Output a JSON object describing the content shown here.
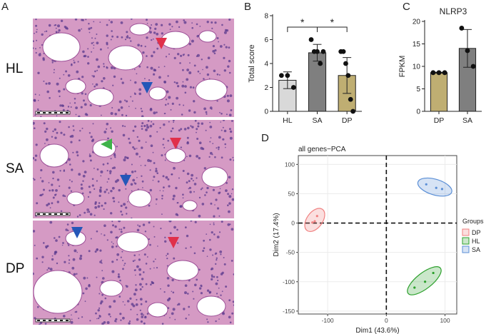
{
  "panels": {
    "a": "A",
    "b": "B",
    "c": "C",
    "d": "D"
  },
  "histology": {
    "rows": [
      {
        "label": "HL"
      },
      {
        "label": "SA"
      },
      {
        "label": "DP"
      }
    ]
  },
  "colors": {
    "tissue": "#d59ac4",
    "tissue_dark": "#9c4f97",
    "nuclei": "#5a3a8e",
    "arrow_red": "#e0304a",
    "arrow_blue": "#2457b8",
    "arrow_green": "#3fb24a",
    "HL": "#d9d9d9",
    "SA": "#7f7f7f",
    "DP": "#bfae72",
    "pca_DP": "#f08080",
    "pca_HL": "#2ca02c",
    "pca_SA": "#5b8fd6"
  },
  "chart_data": [
    {
      "id": "B",
      "type": "bar",
      "categories": [
        "HL",
        "SA",
        "DP"
      ],
      "values": [
        2.6,
        4.9,
        3.0
      ],
      "errors": [
        0.7,
        0.7,
        1.5
      ],
      "points": [
        [
          3.0,
          3.0,
          2.0
        ],
        [
          6.0,
          5.0,
          5.0,
          4.0,
          5.0
        ],
        [
          5.0,
          5.0,
          4.0,
          3.0,
          1.0,
          0.0
        ]
      ],
      "ylabel": "Total score",
      "ylim": [
        0,
        8
      ],
      "yticks": [
        "0",
        "2",
        "4",
        "6",
        "8"
      ],
      "significance": [
        {
          "from": "HL",
          "to": "SA",
          "label": "*"
        },
        {
          "from": "SA",
          "to": "DP",
          "label": "*"
        }
      ]
    },
    {
      "id": "C",
      "type": "bar",
      "title": "NLRP3",
      "categories": [
        "DP",
        "SA"
      ],
      "values": [
        8.6,
        14.0
      ],
      "errors": [
        0.1,
        4.2
      ],
      "points": [
        [
          8.6,
          8.6,
          8.6
        ],
        [
          18.5,
          13.5,
          10.0
        ]
      ],
      "ylabel": "FPKM",
      "ylim": [
        0,
        20
      ],
      "yticks": [
        "0",
        "5",
        "10",
        "15",
        "20"
      ]
    },
    {
      "id": "D",
      "type": "scatter",
      "title": "all genes−PCA",
      "xlabel": "Dim1 (43.6%)",
      "ylabel": "Dim2 (17.4%)",
      "xlim": [
        -150,
        120
      ],
      "ylim": [
        -155,
        115
      ],
      "xticks": [
        "-100",
        "0",
        "100"
      ],
      "yticks": [
        "100",
        "50",
        "0",
        "-50",
        "-100",
        "-150"
      ],
      "legend": {
        "title": "Groups",
        "position": "right"
      },
      "series": [
        {
          "name": "DP",
          "points": [
            [
              -118,
              12
            ],
            [
              -122,
              3
            ],
            [
              -126,
              1
            ]
          ]
        },
        {
          "name": "HL",
          "points": [
            [
              48,
              -110
            ],
            [
              80,
              -85
            ],
            [
              66,
              -100
            ]
          ]
        },
        {
          "name": "SA",
          "points": [
            [
              68,
              66
            ],
            [
              85,
              60
            ],
            [
              95,
              58
            ]
          ]
        }
      ]
    }
  ]
}
